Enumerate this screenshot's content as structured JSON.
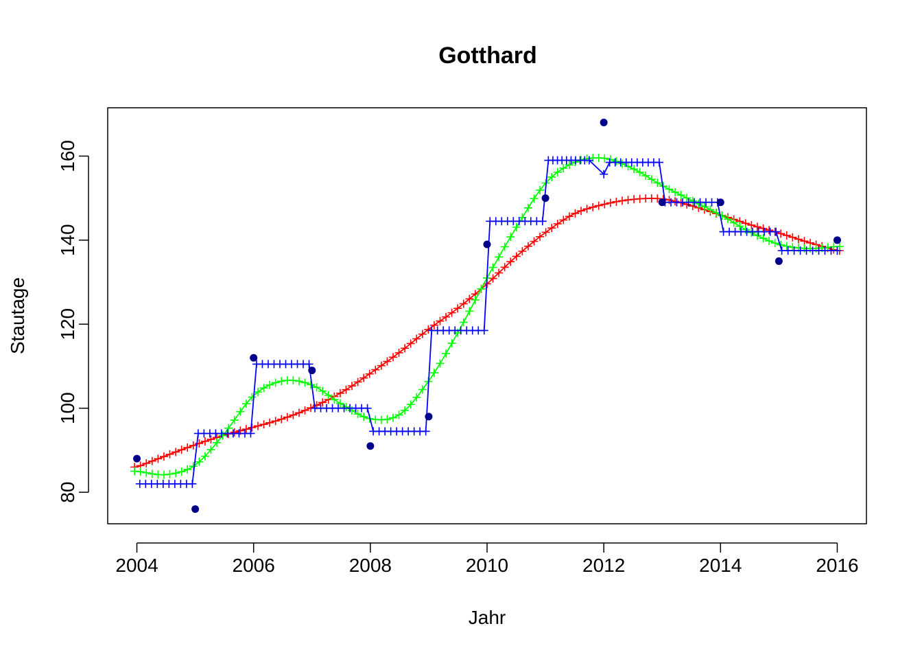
{
  "chart_data": {
    "type": "line",
    "title": "Gotthard",
    "xlabel": "Jahr",
    "ylabel": "Stautage",
    "xlim": [
      2003.5,
      2016.5
    ],
    "ylim": [
      72.5,
      171.5
    ],
    "x_ticks": [
      2004,
      2006,
      2008,
      2010,
      2012,
      2014,
      2016
    ],
    "y_ticks": [
      80,
      100,
      120,
      140,
      160
    ],
    "grid": false,
    "legend": "none",
    "colors": {
      "observed": "#00008b",
      "red": "#ff0000",
      "green": "#00ff00",
      "blue": "#0000ff",
      "axis": "#000000"
    },
    "observed": {
      "x": [
        2004,
        2005,
        2006,
        2007,
        2008,
        2009,
        2010,
        2011,
        2012,
        2013,
        2014,
        2015,
        2016
      ],
      "y": [
        88,
        76,
        112,
        109,
        91,
        98,
        139,
        150,
        168,
        149,
        149,
        135,
        140
      ]
    },
    "curve_knots": {
      "red": {
        "x": [
          2004,
          2004.5,
          2005,
          2005.5,
          2006,
          2006.5,
          2007,
          2007.5,
          2008,
          2008.5,
          2009,
          2009.5,
          2010,
          2010.5,
          2011,
          2011.5,
          2012,
          2012.5,
          2013,
          2013.5,
          2014,
          2014.5,
          2015,
          2015.5,
          2016
        ],
        "y": [
          86,
          88.7,
          91.3,
          93.6,
          95.5,
          97.5,
          100.2,
          103.7,
          108.3,
          113.3,
          118.8,
          123.8,
          129.6,
          136.1,
          141.8,
          146.3,
          148.5,
          149.7,
          149.8,
          148.2,
          146,
          143.7,
          141.7,
          139.5,
          137.5
        ]
      },
      "green": {
        "x": [
          2004,
          2004.5,
          2005,
          2005.5,
          2006,
          2006.5,
          2007,
          2007.5,
          2008,
          2008.5,
          2009,
          2009.5,
          2010,
          2010.5,
          2011,
          2011.5,
          2012,
          2012.5,
          2013,
          2013.5,
          2014,
          2014.5,
          2015,
          2015.5,
          2016
        ],
        "y": [
          85,
          84.2,
          86.5,
          94,
          103,
          106.5,
          105.5,
          101,
          97.5,
          98.5,
          106.5,
          118,
          131,
          143,
          153.5,
          158.5,
          159.5,
          157,
          153,
          149.5,
          146,
          142,
          139,
          138,
          138.5
        ]
      }
    },
    "blue_steps": [
      {
        "x": [
          2004.05,
          2004.95
        ],
        "y": 82
      },
      {
        "x": [
          2005.05,
          2005.95
        ],
        "y": 94
      },
      {
        "x": [
          2006.05,
          2006.95
        ],
        "y": 110.5
      },
      {
        "x": [
          2007.05,
          2007.95
        ],
        "y": 100
      },
      {
        "x": [
          2008.05,
          2008.95
        ],
        "y": 94.5
      },
      {
        "x": [
          2009.05,
          2009.95
        ],
        "y": 118.5
      },
      {
        "x": [
          2010.05,
          2010.95
        ],
        "y": 144.5
      },
      {
        "x": [
          2011.05,
          2011.75
        ],
        "y": 159
      },
      {
        "x": [
          2012.1,
          2012.95
        ],
        "y": 158.5
      },
      {
        "x": [
          2013.05,
          2013.95
        ],
        "y": 149
      },
      {
        "x": [
          2014.05,
          2014.95
        ],
        "y": 142
      },
      {
        "x": [
          2015.05,
          2016.0
        ],
        "y": 137.5
      }
    ],
    "blue_dip": {
      "x": 2012,
      "y": 155.7
    }
  }
}
